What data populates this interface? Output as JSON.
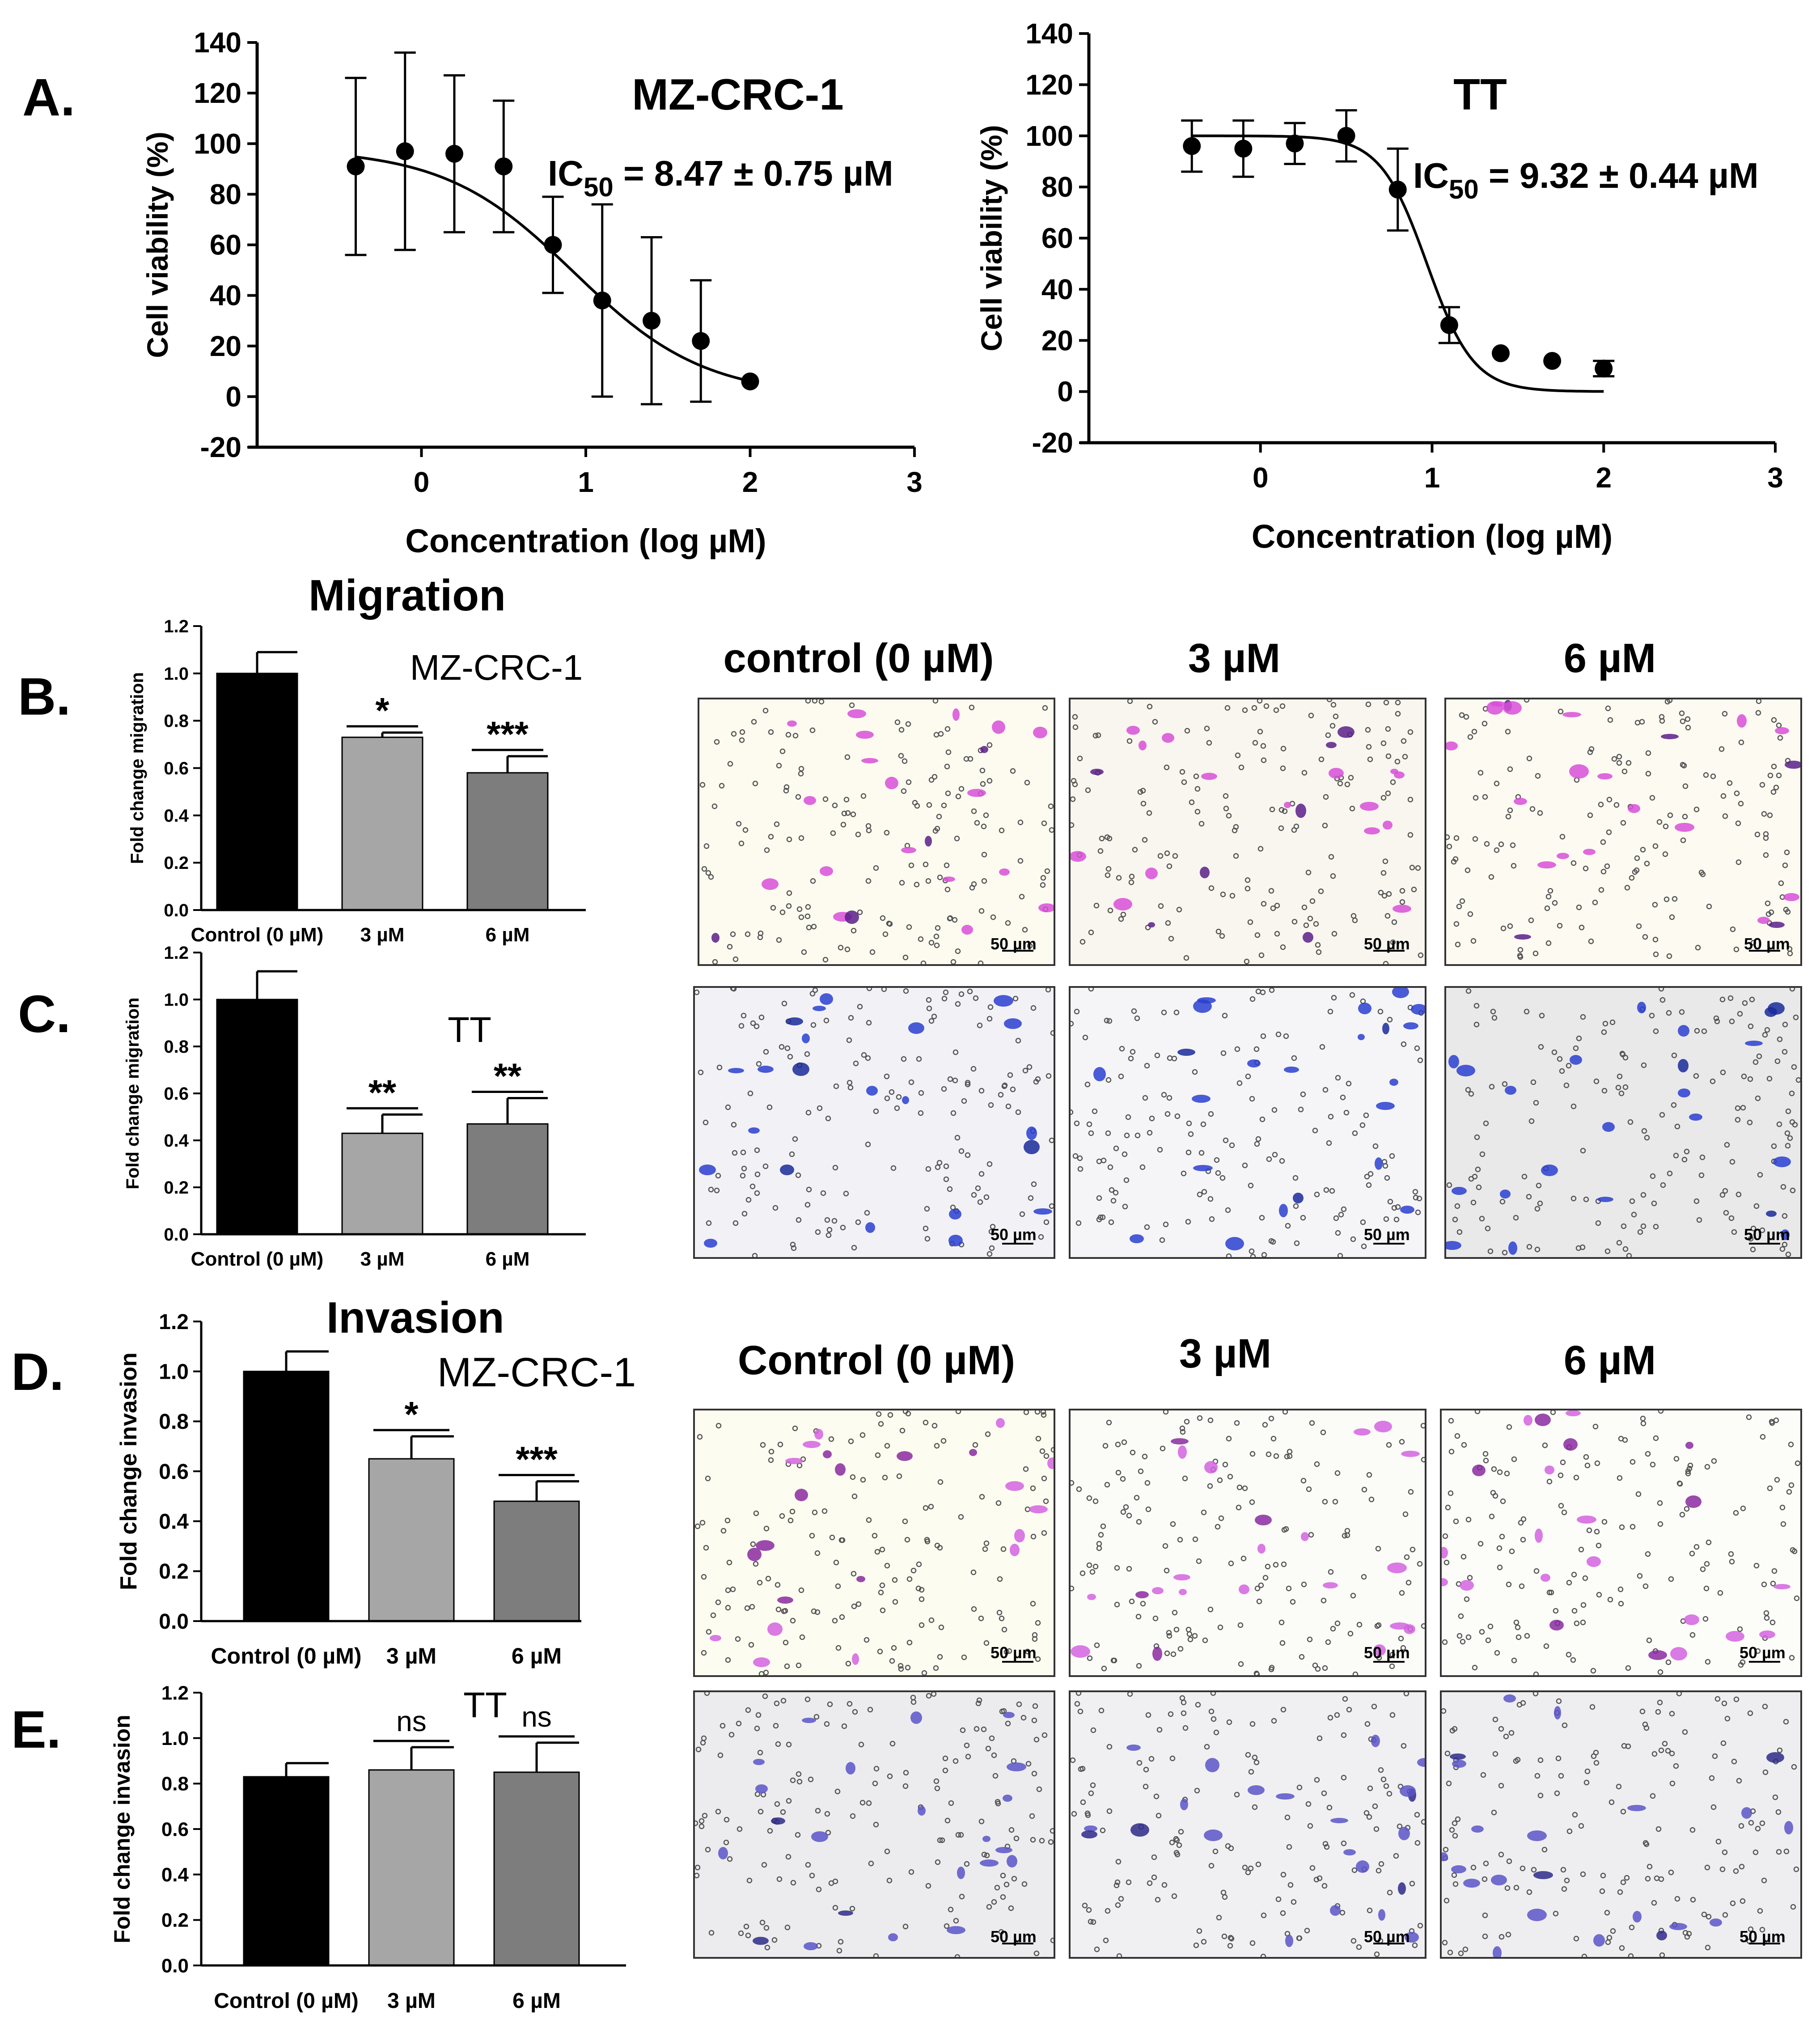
{
  "panel_letters": [
    "A.",
    "B.",
    "C.",
    "D.",
    "E."
  ],
  "section_titles": {
    "migration": "Migration",
    "invasion": "Invasion"
  },
  "image_columns": {
    "migration": [
      "control (0 µM)",
      "3 µM",
      "6 µM"
    ],
    "invasion": [
      "Control (0 µM)",
      "3 µM",
      "6 µM"
    ]
  },
  "scale_bar_label": "50 µm",
  "micrographs": {
    "B": {
      "stain": "#d84fd8",
      "dark": "#5a1f8a"
    },
    "C": {
      "stain": "#2a3fd0",
      "dark": "#1a2a9a"
    },
    "D": {
      "stain": "#d463e0",
      "dark": "#8a2aa0"
    },
    "E": {
      "stain": "#5a55c8",
      "dark": "#2f2a8a"
    }
  },
  "chart_data": [
    {
      "id": "A-left",
      "type": "scatter",
      "title": "MZ-CRC-1",
      "annotation": {
        "prefix": "IC",
        "sub": "50",
        "suffix": " = 8.47 ± 0.75 µM"
      },
      "xlabel": "Concentration (log µM)",
      "ylabel": "Cell viability (%)",
      "xlim": [
        -1,
        3
      ],
      "ylim": [
        -20,
        140
      ],
      "xticks": [
        0,
        1,
        2,
        3
      ],
      "yticks": [
        -20,
        0,
        20,
        40,
        60,
        80,
        100,
        120,
        140
      ],
      "points": [
        {
          "x": -0.4,
          "y": 91,
          "err": 35
        },
        {
          "x": -0.1,
          "y": 97,
          "err": 39
        },
        {
          "x": 0.2,
          "y": 96,
          "err": 31
        },
        {
          "x": 0.5,
          "y": 91,
          "err": 26
        },
        {
          "x": 0.8,
          "y": 60,
          "err": 19
        },
        {
          "x": 1.1,
          "y": 38,
          "err": 38
        },
        {
          "x": 1.4,
          "y": 30,
          "err": 33
        },
        {
          "x": 1.7,
          "y": 22,
          "err": 24
        },
        {
          "x": 2.0,
          "y": 6,
          "err": 0
        }
      ],
      "fit": {
        "top": 98,
        "bottom": 0,
        "logIC50": 0.93,
        "hill": 1.1,
        "x_range": [
          -0.4,
          2.0
        ]
      }
    },
    {
      "id": "A-right",
      "type": "scatter",
      "title": "TT",
      "annotation": {
        "prefix": "IC",
        "sub": "50",
        "suffix": " = 9.32 ± 0.44 µM"
      },
      "xlabel": "Concentration (log µM)",
      "ylabel": "Cell viability (%)",
      "xlim": [
        -1,
        3
      ],
      "ylim": [
        -20,
        140
      ],
      "xticks": [
        0,
        1,
        2,
        3
      ],
      "yticks": [
        -20,
        0,
        20,
        40,
        60,
        80,
        100,
        120,
        140
      ],
      "points": [
        {
          "x": -0.4,
          "y": 96,
          "err": 10
        },
        {
          "x": -0.1,
          "y": 95,
          "err": 11
        },
        {
          "x": 0.2,
          "y": 97,
          "err": 8
        },
        {
          "x": 0.5,
          "y": 100,
          "err": 10
        },
        {
          "x": 0.8,
          "y": 79,
          "err": 16
        },
        {
          "x": 1.1,
          "y": 26,
          "err": 7
        },
        {
          "x": 1.4,
          "y": 15,
          "err": 0
        },
        {
          "x": 1.7,
          "y": 12,
          "err": 0
        },
        {
          "x": 2.0,
          "y": 9,
          "err": 3
        }
      ],
      "fit": {
        "top": 100,
        "bottom": 0,
        "logIC50": 0.97,
        "hill": 3.2,
        "x_range": [
          -0.4,
          2.0
        ]
      }
    },
    {
      "id": "B",
      "type": "bar",
      "title": "MZ-CRC-1",
      "ylabel": "Fold change migration",
      "categories": [
        "Control (0 µM)",
        "3 µM",
        "6 µM"
      ],
      "values": [
        1.0,
        0.73,
        0.58
      ],
      "errors": [
        0.09,
        0.02,
        0.07
      ],
      "significance": [
        "",
        "*",
        "***"
      ],
      "bar_colors": [
        "#000000",
        "#a6a6a6",
        "#7d7d7d"
      ],
      "ylim": [
        0,
        1.2
      ],
      "yticks": [
        "0.0",
        "0.2",
        "0.4",
        "0.6",
        "0.8",
        "1.0",
        "1.2"
      ]
    },
    {
      "id": "C",
      "type": "bar",
      "title": "TT",
      "ylabel": "Fold change migration",
      "categories": [
        "Control (0 µM)",
        "3 µM",
        "6 µM"
      ],
      "values": [
        1.0,
        0.43,
        0.47
      ],
      "errors": [
        0.12,
        0.08,
        0.11
      ],
      "significance": [
        "",
        "**",
        "**"
      ],
      "bar_colors": [
        "#000000",
        "#a6a6a6",
        "#7d7d7d"
      ],
      "ylim": [
        0,
        1.2
      ],
      "yticks": [
        "0.0",
        "0.2",
        "0.4",
        "0.6",
        "0.8",
        "1.0",
        "1.2"
      ]
    },
    {
      "id": "D",
      "type": "bar",
      "title": "MZ-CRC-1",
      "ylabel": "Fold change invasion",
      "categories": [
        "Control (0 µM)",
        "3 µM",
        "6 µM"
      ],
      "values": [
        1.0,
        0.65,
        0.48
      ],
      "errors": [
        0.08,
        0.09,
        0.08
      ],
      "significance": [
        "",
        "*",
        "***"
      ],
      "bar_colors": [
        "#000000",
        "#a6a6a6",
        "#7d7d7d"
      ],
      "ylim": [
        0,
        1.2
      ],
      "yticks": [
        "0.0",
        "0.2",
        "0.4",
        "0.6",
        "0.8",
        "1.0",
        "1.2"
      ]
    },
    {
      "id": "E",
      "type": "bar",
      "title": "TT",
      "ylabel": "Fold change invasion",
      "categories": [
        "Control (0 µM)",
        "3 µM",
        "6 µM"
      ],
      "values": [
        0.83,
        0.86,
        0.85
      ],
      "errors": [
        0.06,
        0.1,
        0.13
      ],
      "significance": [
        "",
        "ns",
        "ns"
      ],
      "bar_colors": [
        "#000000",
        "#a6a6a6",
        "#7d7d7d"
      ],
      "ylim": [
        0,
        1.2
      ],
      "yticks": [
        "0.0",
        "0.2",
        "0.4",
        "0.6",
        "0.8",
        "1.0",
        "1.2"
      ]
    }
  ]
}
